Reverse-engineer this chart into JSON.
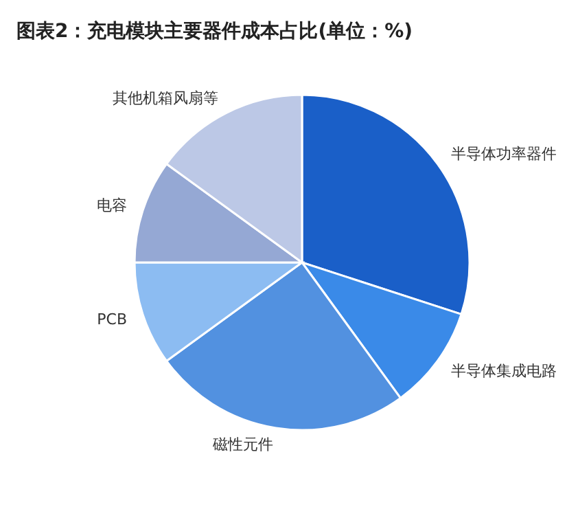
{
  "chart_data": {
    "type": "pie",
    "title": "图表2：充电模块主要器件成本占比(单位：%)",
    "categories": [
      "半导体功率器件",
      "半导体集成电路",
      "磁性元件",
      "PCB",
      "电容",
      "其他机箱风扇等"
    ],
    "values": [
      30,
      10,
      25,
      10,
      10,
      15
    ],
    "colors": [
      "#1a5fc8",
      "#3a8ae8",
      "#5291e0",
      "#8cbcf2",
      "#95a8d4",
      "#bcc8e6"
    ],
    "legend": false
  }
}
